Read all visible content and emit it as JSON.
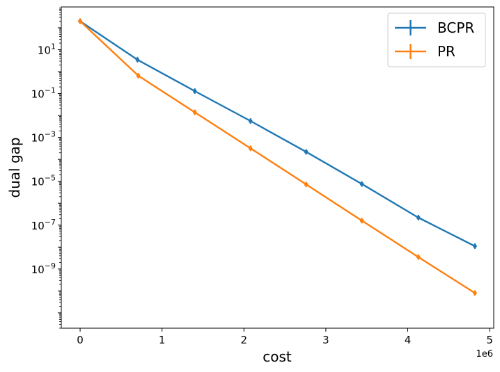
{
  "chart_data": {
    "type": "line",
    "xlabel": "cost",
    "ylabel": "dual gap",
    "x_offset_label": "1e6",
    "x_scale_factor": 1000000,
    "y_scale": "log",
    "xlim": [
      -0.23,
      5.05
    ],
    "ylim_log10": [
      -11.7,
      2.95
    ],
    "x_ticks": [
      0,
      1,
      2,
      3,
      4,
      5
    ],
    "x_tick_labels": [
      "0",
      "1",
      "2",
      "3",
      "4",
      "5"
    ],
    "y_ticks_log10": [
      1,
      -1,
      -3,
      -5,
      -7,
      -9
    ],
    "y_tick_labels": [
      {
        "base": "10",
        "exp": "1"
      },
      {
        "base": "10",
        "exp": "−1"
      },
      {
        "base": "10",
        "exp": "−3"
      },
      {
        "base": "10",
        "exp": "−5"
      },
      {
        "base": "10",
        "exp": "−7"
      },
      {
        "base": "10",
        "exp": "−9"
      }
    ],
    "grid": false,
    "legend_position": "top-right",
    "series": [
      {
        "name": "BCPR",
        "color": "#1f77b4",
        "x": [
          0,
          0.7,
          1.4,
          2.08,
          2.76,
          3.44,
          4.13,
          4.82
        ],
        "y": [
          200,
          3.5,
          0.13,
          0.0056,
          0.00022,
          7.5e-06,
          2.2e-07,
          1.1e-08
        ]
      },
      {
        "name": "PR",
        "color": "#ff7f0e",
        "x": [
          0,
          0.71,
          1.4,
          2.08,
          2.76,
          3.44,
          4.13,
          4.82
        ],
        "y": [
          200,
          0.65,
          0.014,
          0.00032,
          7.2e-06,
          1.6e-07,
          3.5e-09,
          8e-11
        ]
      }
    ]
  }
}
